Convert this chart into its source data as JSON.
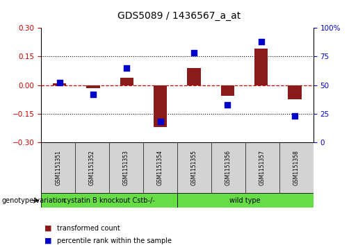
{
  "title": "GDS5089 / 1436567_a_at",
  "samples": [
    "GSM1151351",
    "GSM1151352",
    "GSM1151353",
    "GSM1151354",
    "GSM1151355",
    "GSM1151356",
    "GSM1151357",
    "GSM1151358"
  ],
  "transformed_count": [
    0.01,
    -0.015,
    0.04,
    -0.22,
    0.09,
    -0.055,
    0.19,
    -0.075
  ],
  "percentile_rank": [
    52,
    42,
    65,
    18,
    78,
    33,
    88,
    23
  ],
  "ylim_left": [
    -0.3,
    0.3
  ],
  "ylim_right": [
    0,
    100
  ],
  "yticks_left": [
    -0.3,
    -0.15,
    0.0,
    0.15,
    0.3
  ],
  "yticks_right": [
    0,
    25,
    50,
    75,
    100
  ],
  "dotted_lines": [
    -0.15,
    0.15
  ],
  "group1_label": "cystatin B knockout Cstb-/-",
  "group2_label": "wild type",
  "group_row_label": "genotype/variation",
  "bar_color": "#8b1a1a",
  "dot_color": "#0000cc",
  "zero_line_color": "#cc0000",
  "bg_label": "#d3d3d3",
  "bg_group": "#66dd44",
  "legend_items": [
    {
      "label": "transformed count",
      "color": "#8b1a1a"
    },
    {
      "label": "percentile rank within the sample",
      "color": "#0000cc"
    }
  ]
}
